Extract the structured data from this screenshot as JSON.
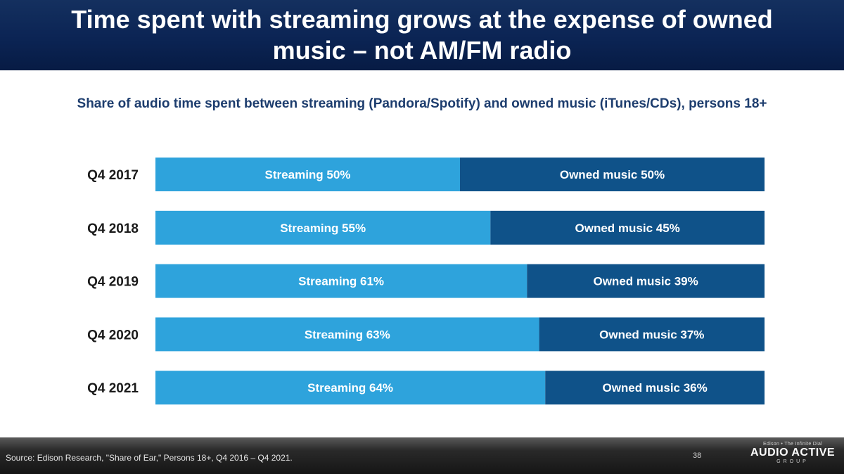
{
  "header": {
    "title": "Time spent with streaming grows at the expense of owned music – not AM/FM radio"
  },
  "chart_data": {
    "type": "bar",
    "stacked": true,
    "orientation": "horizontal",
    "subtitle": "Share of audio time spent between streaming (Pandora/Spotify) and owned music (iTunes/CDs), persons 18+",
    "categories": [
      "Q4 2017",
      "Q4 2018",
      "Q4 2019",
      "Q4 2020",
      "Q4 2021"
    ],
    "series": [
      {
        "name": "Streaming",
        "values": [
          50,
          55,
          61,
          63,
          64
        ],
        "color": "#2ea3dc"
      },
      {
        "name": "Owned music",
        "values": [
          50,
          45,
          39,
          37,
          36
        ],
        "color": "#0f5289"
      }
    ],
    "data_labels": [
      [
        "Streaming 50%",
        "Owned music 50%"
      ],
      [
        "Streaming 55%",
        "Owned music 45%"
      ],
      [
        "Streaming 61%",
        "Owned music 39%"
      ],
      [
        "Streaming 63%",
        "Owned music 37%"
      ],
      [
        "Streaming 64%",
        "Owned music 36%"
      ]
    ],
    "xlim": [
      0,
      100
    ],
    "grid": false
  },
  "footer": {
    "source": "Source: Edison Research, \"Share of Ear,\" Persons 18+, Q4 2016 – Q4 2021.",
    "page_number": "38",
    "brand": {
      "tagline": "Edison • The Infinite Dial",
      "name": "AUDIO ACTIVE",
      "group": "GROUP"
    }
  }
}
